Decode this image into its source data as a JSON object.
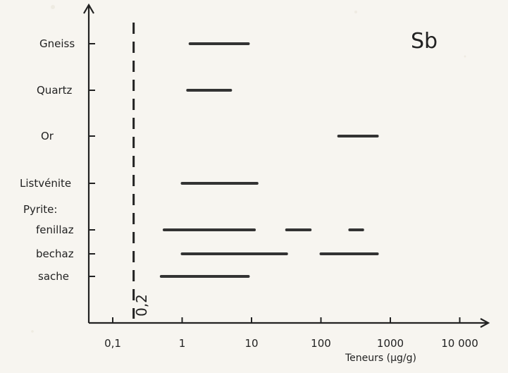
{
  "chart_data": {
    "type": "range",
    "title": "Sb",
    "xlabel": "Teneurs (µg/g)",
    "x_scale": "log",
    "xlim": [
      0.03,
      25000
    ],
    "x_ticks": [
      {
        "value": 0.1,
        "label": "0,1"
      },
      {
        "value": 1,
        "label": "1"
      },
      {
        "value": 10,
        "label": "10"
      },
      {
        "value": 100,
        "label": "100"
      },
      {
        "value": 1000,
        "label": "1000"
      },
      {
        "value": 10000,
        "label": "10 000"
      }
    ],
    "reference_line": {
      "value": 0.2,
      "label": "0,2",
      "style": "dashed"
    },
    "categories": [
      {
        "label": "Gneiss",
        "tick": true,
        "ranges": [
          [
            1.3,
            9
          ]
        ]
      },
      {
        "label": "Quartz",
        "tick": true,
        "ranges": [
          [
            1.2,
            5
          ]
        ]
      },
      {
        "label": "Or",
        "tick": true,
        "ranges": [
          [
            180,
            650
          ]
        ]
      },
      {
        "label": "Listvénite",
        "tick": true,
        "ranges": [
          [
            1,
            12
          ]
        ]
      },
      {
        "label": "Pyrite:",
        "tick": false,
        "ranges": []
      },
      {
        "label": "fenillaz",
        "tick": true,
        "ranges": [
          [
            0.55,
            11
          ],
          [
            32,
            70
          ],
          [
            260,
            400
          ]
        ]
      },
      {
        "label": "bechaz",
        "tick": true,
        "ranges": [
          [
            1,
            32
          ],
          [
            100,
            650
          ]
        ]
      },
      {
        "label": "sache",
        "tick": true,
        "ranges": [
          [
            0.5,
            9
          ]
        ]
      }
    ],
    "grid": false
  }
}
